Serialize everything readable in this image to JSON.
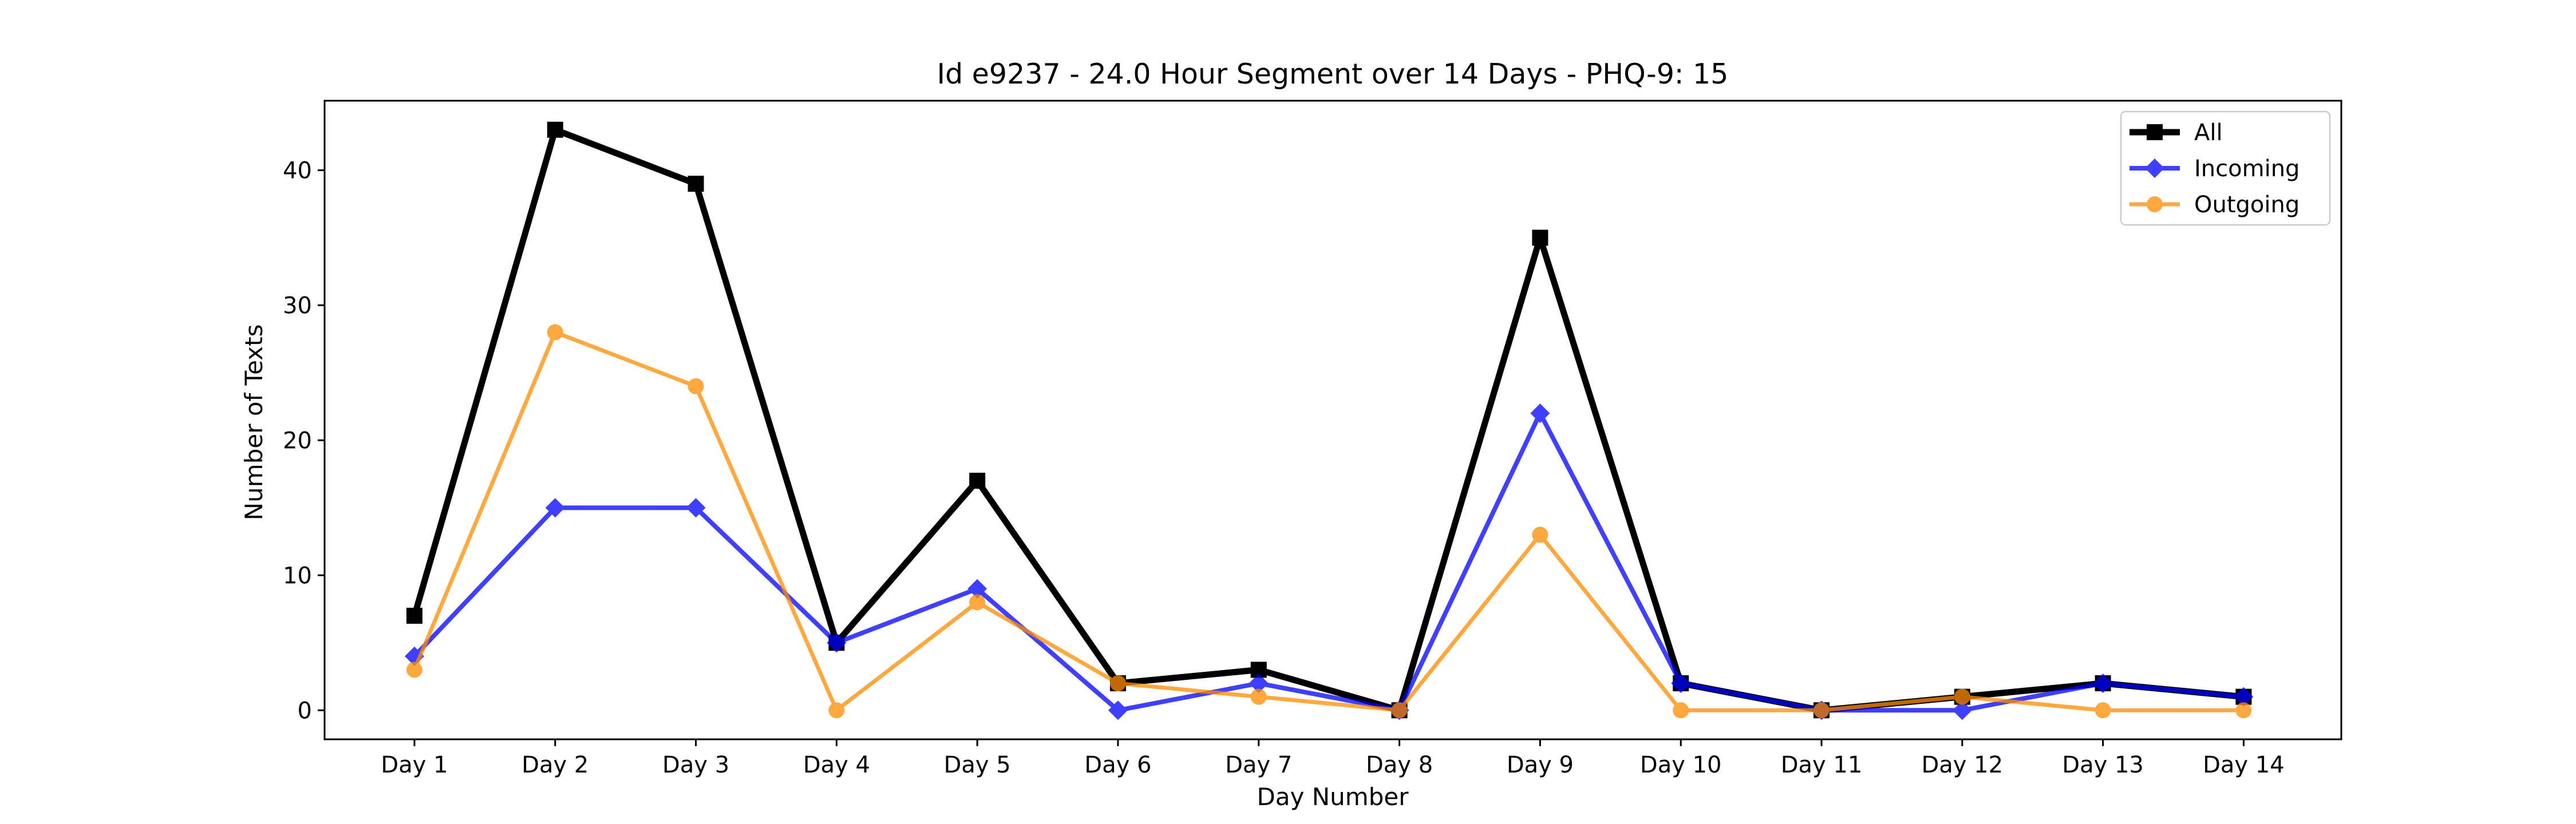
{
  "chart_data": {
    "type": "line",
    "title": "Id e9237 - 24.0 Hour Segment over 14 Days - PHQ-9: 15",
    "xlabel": "Day Number",
    "ylabel": "Number of Texts",
    "categories": [
      "Day 1",
      "Day 2",
      "Day 3",
      "Day 4",
      "Day 5",
      "Day 6",
      "Day 7",
      "Day 8",
      "Day 9",
      "Day 10",
      "Day 11",
      "Day 12",
      "Day 13",
      "Day 14"
    ],
    "ylim": [
      -2.15,
      45.15
    ],
    "yticks": [
      0,
      10,
      20,
      30,
      40
    ],
    "grid": false,
    "legend": "top-right",
    "series": [
      {
        "name": "All",
        "color": "#000000",
        "marker": "square",
        "values": [
          7,
          43,
          39,
          5,
          17,
          2,
          3,
          0,
          35,
          2,
          0,
          1,
          2,
          1
        ]
      },
      {
        "name": "Incoming",
        "color": "#0000ff",
        "marker": "diamond",
        "values": [
          4,
          15,
          15,
          5,
          9,
          0,
          2,
          0,
          22,
          2,
          0,
          0,
          2,
          1
        ]
      },
      {
        "name": "Outgoing",
        "color": "#ff8c00",
        "marker": "circle",
        "values": [
          3,
          28,
          24,
          0,
          8,
          2,
          1,
          0,
          13,
          0,
          0,
          1,
          0,
          0
        ]
      }
    ]
  }
}
